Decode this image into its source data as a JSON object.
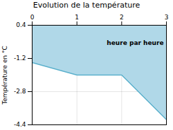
{
  "chart_data": {
    "type": "area",
    "title": "Evolution de la température",
    "ylabel": "Température en °C",
    "annotation": "heure par heure",
    "x": [
      0,
      1,
      2,
      3
    ],
    "values": [
      -1.4,
      -2.0,
      -2.0,
      -4.15
    ],
    "xlim": [
      0,
      3
    ],
    "ylim": [
      -4.4,
      0.4
    ],
    "xticks": [
      0,
      1,
      2,
      3
    ],
    "yticks": [
      0.4,
      -1.2,
      -2.8,
      -4.4
    ],
    "colors": [
      "#5ab0cc",
      "#b0d8e8"
    ],
    "grid": true
  }
}
